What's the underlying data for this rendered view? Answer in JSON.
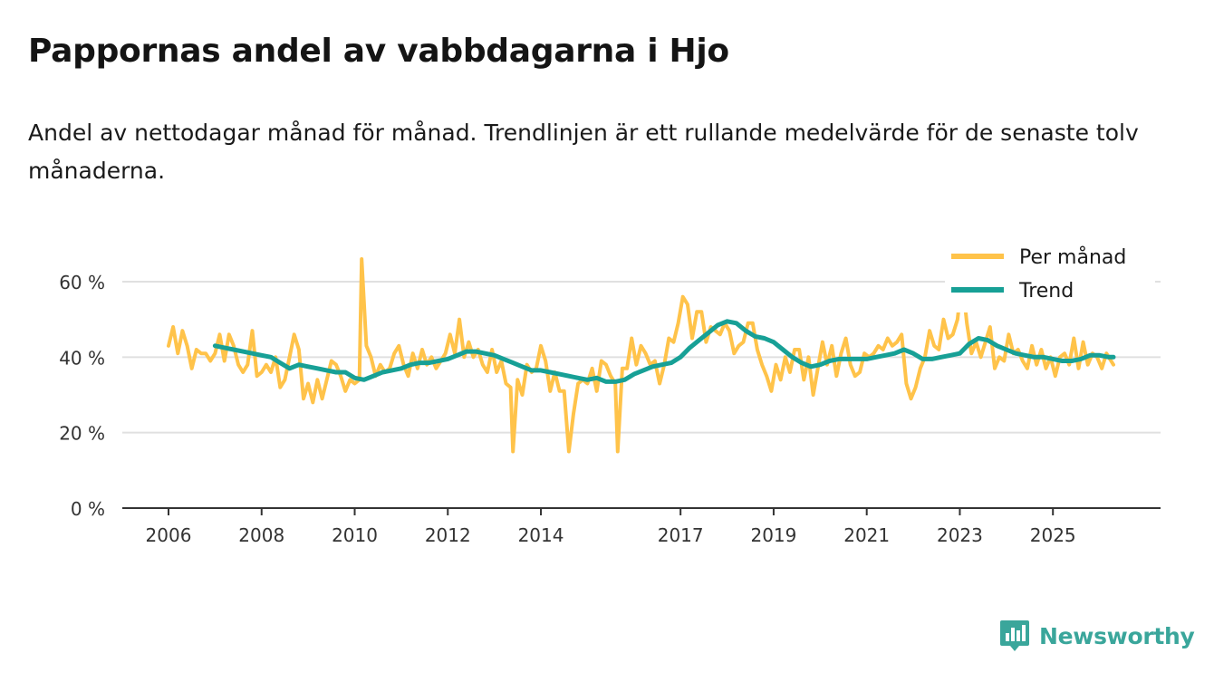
{
  "title": "Pappornas andel av vabbdagarna i Hjo",
  "subtitle": "Andel av nettodagar månad för månad. Trendlinjen är ett rullande medelvärde för de senaste tolv månaderna.",
  "brand": {
    "name": "Newsworthy",
    "icon": "bar-chart-logo-icon",
    "color": "#3aa69b"
  },
  "colors": {
    "monthly": "#ffc34a",
    "trend": "#17a096",
    "grid": "#e0e0e0",
    "axis": "#333333"
  },
  "chart_data": {
    "type": "line",
    "x_unit": "decimal year",
    "xlim": [
      2006.0,
      2026.3
    ],
    "ylim": [
      0,
      70
    ],
    "y_ticks": [
      0,
      20,
      40,
      60
    ],
    "y_tick_labels": [
      "0 %",
      "20 %",
      "40 %",
      "60 %"
    ],
    "x_ticks": [
      2006,
      2008,
      2010,
      2012,
      2014,
      2017,
      2019,
      2021,
      2023,
      2025
    ],
    "x_tick_labels": [
      "2006",
      "2008",
      "2010",
      "2012",
      "2014",
      "2017",
      "2019",
      "2021",
      "2023",
      "2025"
    ],
    "grid": true,
    "legend": {
      "position": "top-right",
      "entries": [
        "Per månad",
        "Trend"
      ]
    },
    "series": [
      {
        "name": "Per månad",
        "points": [
          [
            2006.0,
            43
          ],
          [
            2006.1,
            48
          ],
          [
            2006.2,
            41
          ],
          [
            2006.3,
            47
          ],
          [
            2006.4,
            43
          ],
          [
            2006.5,
            37
          ],
          [
            2006.6,
            42
          ],
          [
            2006.7,
            41
          ],
          [
            2006.8,
            41
          ],
          [
            2006.9,
            39
          ],
          [
            2007.0,
            41
          ],
          [
            2007.1,
            46
          ],
          [
            2007.2,
            39
          ],
          [
            2007.3,
            46
          ],
          [
            2007.4,
            43
          ],
          [
            2007.5,
            38
          ],
          [
            2007.6,
            36
          ],
          [
            2007.7,
            38
          ],
          [
            2007.8,
            47
          ],
          [
            2007.9,
            35
          ],
          [
            2008.0,
            36
          ],
          [
            2008.1,
            38
          ],
          [
            2008.2,
            36
          ],
          [
            2008.3,
            40
          ],
          [
            2008.4,
            32
          ],
          [
            2008.5,
            34
          ],
          [
            2008.6,
            40
          ],
          [
            2008.7,
            46
          ],
          [
            2008.8,
            42
          ],
          [
            2008.9,
            29
          ],
          [
            2009.0,
            33
          ],
          [
            2009.1,
            28
          ],
          [
            2009.2,
            34
          ],
          [
            2009.3,
            29
          ],
          [
            2009.4,
            34
          ],
          [
            2009.5,
            39
          ],
          [
            2009.6,
            38
          ],
          [
            2009.7,
            35
          ],
          [
            2009.8,
            31
          ],
          [
            2009.9,
            34
          ],
          [
            2010.0,
            33
          ],
          [
            2010.1,
            34
          ],
          [
            2010.15,
            66
          ],
          [
            2010.25,
            43
          ],
          [
            2010.35,
            40
          ],
          [
            2010.45,
            35
          ],
          [
            2010.55,
            38
          ],
          [
            2010.65,
            36
          ],
          [
            2010.75,
            37
          ],
          [
            2010.85,
            41
          ],
          [
            2010.95,
            43
          ],
          [
            2011.05,
            38
          ],
          [
            2011.15,
            35
          ],
          [
            2011.25,
            41
          ],
          [
            2011.35,
            37
          ],
          [
            2011.45,
            42
          ],
          [
            2011.55,
            38
          ],
          [
            2011.65,
            40
          ],
          [
            2011.75,
            37
          ],
          [
            2011.85,
            39
          ],
          [
            2011.95,
            41
          ],
          [
            2012.05,
            46
          ],
          [
            2012.15,
            41
          ],
          [
            2012.25,
            50
          ],
          [
            2012.35,
            40
          ],
          [
            2012.45,
            44
          ],
          [
            2012.55,
            40
          ],
          [
            2012.65,
            42
          ],
          [
            2012.75,
            38
          ],
          [
            2012.85,
            36
          ],
          [
            2012.95,
            42
          ],
          [
            2013.05,
            36
          ],
          [
            2013.15,
            39
          ],
          [
            2013.25,
            33
          ],
          [
            2013.35,
            32
          ],
          [
            2013.4,
            15
          ],
          [
            2013.5,
            34
          ],
          [
            2013.6,
            30
          ],
          [
            2013.7,
            38
          ],
          [
            2013.8,
            36
          ],
          [
            2013.9,
            37
          ],
          [
            2014.0,
            43
          ],
          [
            2014.1,
            39
          ],
          [
            2014.2,
            31
          ],
          [
            2014.3,
            36
          ],
          [
            2014.4,
            31
          ],
          [
            2014.5,
            31
          ],
          [
            2014.6,
            15
          ],
          [
            2014.7,
            25
          ],
          [
            2014.8,
            33
          ],
          [
            2014.9,
            34
          ],
          [
            2015.0,
            33
          ],
          [
            2015.1,
            37
          ],
          [
            2015.2,
            31
          ],
          [
            2015.3,
            39
          ],
          [
            2015.4,
            38
          ],
          [
            2015.5,
            35
          ],
          [
            2015.6,
            33
          ],
          [
            2015.65,
            15
          ],
          [
            2015.75,
            37
          ],
          [
            2015.85,
            37
          ],
          [
            2015.95,
            45
          ],
          [
            2016.05,
            38
          ],
          [
            2016.15,
            43
          ],
          [
            2016.25,
            41
          ],
          [
            2016.35,
            38
          ],
          [
            2016.45,
            39
          ],
          [
            2016.55,
            33
          ],
          [
            2016.65,
            38
          ],
          [
            2016.75,
            45
          ],
          [
            2016.85,
            44
          ],
          [
            2016.95,
            49
          ],
          [
            2017.05,
            56
          ],
          [
            2017.15,
            54
          ],
          [
            2017.25,
            45
          ],
          [
            2017.35,
            52
          ],
          [
            2017.45,
            52
          ],
          [
            2017.55,
            44
          ],
          [
            2017.65,
            48
          ],
          [
            2017.75,
            47
          ],
          [
            2017.85,
            46
          ],
          [
            2017.95,
            49
          ],
          [
            2018.05,
            47
          ],
          [
            2018.15,
            41
          ],
          [
            2018.25,
            43
          ],
          [
            2018.35,
            44
          ],
          [
            2018.45,
            49
          ],
          [
            2018.55,
            49
          ],
          [
            2018.65,
            42
          ],
          [
            2018.75,
            38
          ],
          [
            2018.85,
            35
          ],
          [
            2018.95,
            31
          ],
          [
            2019.05,
            38
          ],
          [
            2019.15,
            34
          ],
          [
            2019.25,
            40
          ],
          [
            2019.35,
            36
          ],
          [
            2019.45,
            42
          ],
          [
            2019.55,
            42
          ],
          [
            2019.65,
            34
          ],
          [
            2019.75,
            40
          ],
          [
            2019.85,
            30
          ],
          [
            2019.95,
            37
          ],
          [
            2020.05,
            44
          ],
          [
            2020.15,
            38
          ],
          [
            2020.25,
            43
          ],
          [
            2020.35,
            35
          ],
          [
            2020.45,
            41
          ],
          [
            2020.55,
            45
          ],
          [
            2020.65,
            38
          ],
          [
            2020.75,
            35
          ],
          [
            2020.85,
            36
          ],
          [
            2020.95,
            41
          ],
          [
            2021.05,
            40
          ],
          [
            2021.15,
            41
          ],
          [
            2021.25,
            43
          ],
          [
            2021.35,
            42
          ],
          [
            2021.45,
            45
          ],
          [
            2021.55,
            43
          ],
          [
            2021.65,
            44
          ],
          [
            2021.75,
            46
          ],
          [
            2021.85,
            33
          ],
          [
            2021.95,
            29
          ],
          [
            2022.05,
            32
          ],
          [
            2022.15,
            37
          ],
          [
            2022.25,
            40
          ],
          [
            2022.35,
            47
          ],
          [
            2022.45,
            43
          ],
          [
            2022.55,
            42
          ],
          [
            2022.65,
            50
          ],
          [
            2022.75,
            45
          ],
          [
            2022.85,
            46
          ],
          [
            2022.95,
            50
          ],
          [
            2023.05,
            61
          ],
          [
            2023.15,
            49
          ],
          [
            2023.25,
            41
          ],
          [
            2023.35,
            44
          ],
          [
            2023.45,
            40
          ],
          [
            2023.55,
            44
          ],
          [
            2023.65,
            48
          ],
          [
            2023.75,
            37
          ],
          [
            2023.85,
            40
          ],
          [
            2023.95,
            39
          ],
          [
            2024.05,
            46
          ],
          [
            2024.15,
            41
          ],
          [
            2024.25,
            42
          ],
          [
            2024.35,
            39
          ],
          [
            2024.45,
            37
          ],
          [
            2024.55,
            43
          ],
          [
            2024.65,
            38
          ],
          [
            2024.75,
            42
          ],
          [
            2024.85,
            37
          ],
          [
            2024.95,
            40
          ],
          [
            2025.05,
            35
          ],
          [
            2025.15,
            40
          ],
          [
            2025.25,
            41
          ],
          [
            2025.35,
            38
          ],
          [
            2025.45,
            45
          ],
          [
            2025.55,
            37
          ],
          [
            2025.65,
            44
          ],
          [
            2025.75,
            38
          ],
          [
            2025.85,
            41
          ],
          [
            2025.95,
            40
          ],
          [
            2026.05,
            37
          ],
          [
            2026.15,
            41
          ],
          [
            2026.25,
            39
          ],
          [
            2026.3,
            38
          ]
        ]
      },
      {
        "name": "Trend",
        "points": [
          [
            2007.0,
            43
          ],
          [
            2007.2,
            42.5
          ],
          [
            2007.4,
            42
          ],
          [
            2007.6,
            41.5
          ],
          [
            2007.8,
            41
          ],
          [
            2008.0,
            40.5
          ],
          [
            2008.2,
            40
          ],
          [
            2008.4,
            38.5
          ],
          [
            2008.6,
            37
          ],
          [
            2008.8,
            38
          ],
          [
            2009.0,
            37.5
          ],
          [
            2009.2,
            37
          ],
          [
            2009.4,
            36.5
          ],
          [
            2009.6,
            36
          ],
          [
            2009.8,
            36
          ],
          [
            2010.0,
            34.5
          ],
          [
            2010.2,
            34
          ],
          [
            2010.4,
            35
          ],
          [
            2010.6,
            36
          ],
          [
            2010.8,
            36.5
          ],
          [
            2011.0,
            37
          ],
          [
            2011.2,
            38
          ],
          [
            2011.4,
            38.5
          ],
          [
            2011.6,
            38.5
          ],
          [
            2011.8,
            39
          ],
          [
            2012.0,
            39.5
          ],
          [
            2012.2,
            40.5
          ],
          [
            2012.4,
            41.5
          ],
          [
            2012.6,
            41.5
          ],
          [
            2012.8,
            41
          ],
          [
            2013.0,
            40.5
          ],
          [
            2013.2,
            39.5
          ],
          [
            2013.4,
            38.5
          ],
          [
            2013.6,
            37.5
          ],
          [
            2013.8,
            36.5
          ],
          [
            2014.0,
            36.5
          ],
          [
            2014.2,
            36
          ],
          [
            2014.4,
            35.5
          ],
          [
            2014.6,
            35
          ],
          [
            2014.8,
            34.5
          ],
          [
            2015.0,
            34
          ],
          [
            2015.2,
            34.5
          ],
          [
            2015.4,
            33.5
          ],
          [
            2015.6,
            33.5
          ],
          [
            2015.8,
            34
          ],
          [
            2016.0,
            35.5
          ],
          [
            2016.2,
            36.5
          ],
          [
            2016.4,
            37.5
          ],
          [
            2016.6,
            38
          ],
          [
            2016.8,
            38.5
          ],
          [
            2017.0,
            40
          ],
          [
            2017.2,
            42.5
          ],
          [
            2017.4,
            44.5
          ],
          [
            2017.6,
            46.5
          ],
          [
            2017.8,
            48.5
          ],
          [
            2018.0,
            49.5
          ],
          [
            2018.2,
            49
          ],
          [
            2018.4,
            47
          ],
          [
            2018.6,
            45.5
          ],
          [
            2018.8,
            45
          ],
          [
            2019.0,
            44
          ],
          [
            2019.2,
            42
          ],
          [
            2019.4,
            40
          ],
          [
            2019.6,
            38.5
          ],
          [
            2019.8,
            37.5
          ],
          [
            2020.0,
            38
          ],
          [
            2020.2,
            39
          ],
          [
            2020.4,
            39.5
          ],
          [
            2020.6,
            39.5
          ],
          [
            2020.8,
            39.5
          ],
          [
            2021.0,
            39.5
          ],
          [
            2021.2,
            40
          ],
          [
            2021.4,
            40.5
          ],
          [
            2021.6,
            41
          ],
          [
            2021.8,
            42
          ],
          [
            2022.0,
            41
          ],
          [
            2022.2,
            39.5
          ],
          [
            2022.4,
            39.5
          ],
          [
            2022.6,
            40
          ],
          [
            2022.8,
            40.5
          ],
          [
            2023.0,
            41
          ],
          [
            2023.2,
            43.5
          ],
          [
            2023.4,
            45
          ],
          [
            2023.6,
            44.5
          ],
          [
            2023.8,
            43
          ],
          [
            2024.0,
            42
          ],
          [
            2024.2,
            41
          ],
          [
            2024.4,
            40.5
          ],
          [
            2024.6,
            40
          ],
          [
            2024.8,
            40
          ],
          [
            2025.0,
            39.5
          ],
          [
            2025.2,
            39
          ],
          [
            2025.4,
            39
          ],
          [
            2025.6,
            39.5
          ],
          [
            2025.8,
            40.5
          ],
          [
            2026.0,
            40.5
          ],
          [
            2026.2,
            40
          ],
          [
            2026.3,
            40
          ]
        ]
      }
    ]
  }
}
